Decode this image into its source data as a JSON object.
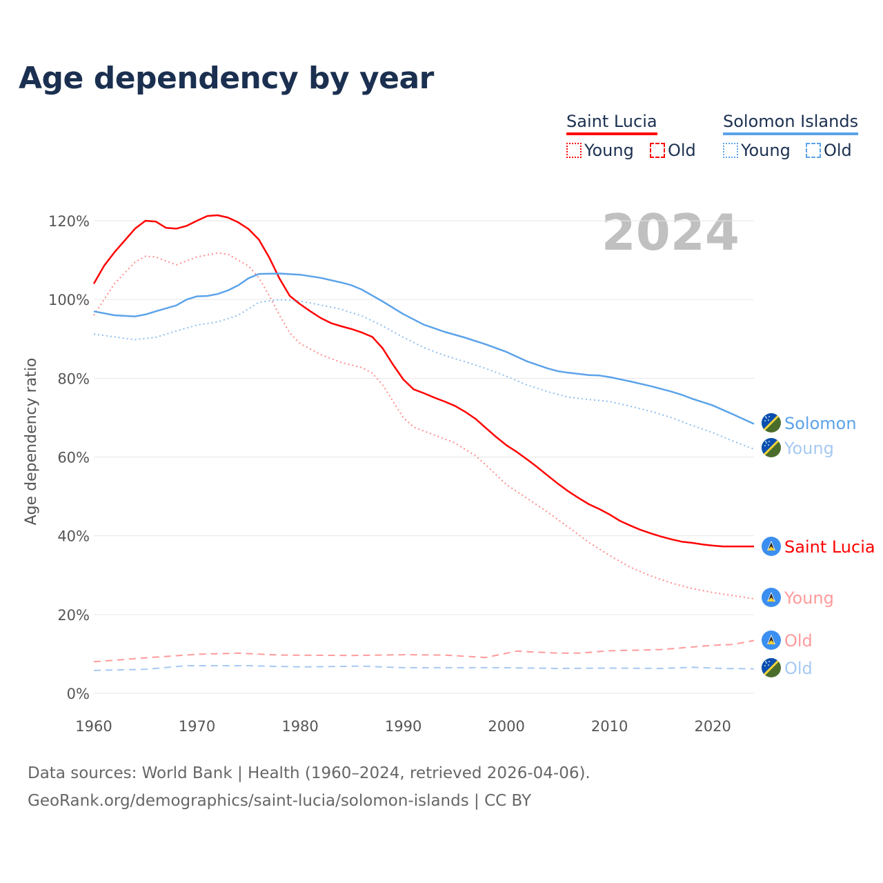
{
  "title": "Age dependency by year",
  "legend": {
    "groups": [
      {
        "country": "Saint Lucia",
        "color": "#ff0000",
        "items": [
          "Young",
          "Old"
        ]
      },
      {
        "country": "Solomon Islands",
        "color": "#5ba3ea",
        "items": [
          "Young",
          "Old"
        ]
      }
    ]
  },
  "year_watermark": "2024",
  "footer": {
    "line1": "Data sources: World Bank | Health (1960–2024, retrieved 2026-04-06).",
    "line2": "GeoRank.org/demographics/saint-lucia/solomon-islands | CC BY"
  },
  "chart_data": {
    "type": "line",
    "title": "Age dependency by year",
    "xlabel": "",
    "ylabel": "Age dependency ratio",
    "xlim": [
      1960,
      2024
    ],
    "ylim": [
      0,
      120
    ],
    "x_ticks": [
      "1960",
      "1970",
      "1980",
      "1990",
      "2000",
      "2010",
      "2020"
    ],
    "y_ticks": [
      "0%",
      "20%",
      "40%",
      "60%",
      "80%",
      "100%",
      "120%"
    ],
    "grid": true,
    "series": [
      {
        "name": "Saint Lucia",
        "end_label": "Saint Lucia",
        "flag": "saint-lucia",
        "style": "solid",
        "color": "#ff0000",
        "label_color": "#ff0000",
        "x": [
          1960,
          1961,
          1962,
          1963,
          1964,
          1965,
          1966,
          1967,
          1968,
          1969,
          1970,
          1971,
          1972,
          1973,
          1974,
          1975,
          1976,
          1977,
          1978,
          1979,
          1980,
          1981,
          1982,
          1983,
          1984,
          1985,
          1986,
          1987,
          1988,
          1989,
          1990,
          1991,
          1992,
          1993,
          1994,
          1995,
          1996,
          1997,
          1998,
          1999,
          2000,
          2001,
          2002,
          2003,
          2004,
          2005,
          2006,
          2007,
          2008,
          2009,
          2010,
          2011,
          2012,
          2013,
          2014,
          2015,
          2016,
          2017,
          2018,
          2019,
          2020,
          2021,
          2022,
          2023,
          2024
        ],
        "y": [
          104,
          108.6,
          112,
          115,
          118,
          120,
          119.8,
          118.2,
          118,
          118.7,
          120,
          121.2,
          121.4,
          120.8,
          119.6,
          117.9,
          115.2,
          110.7,
          105.3,
          100.9,
          98.8,
          97,
          95.3,
          94,
          93.2,
          92.5,
          91.6,
          90.5,
          87.6,
          83.5,
          79.7,
          77.2,
          76.2,
          75.1,
          74.1,
          73,
          71.5,
          69.7,
          67.4,
          65.1,
          63,
          61.3,
          59.4,
          57.4,
          55.3,
          53.2,
          51.3,
          49.6,
          48,
          46.8,
          45.4,
          43.8,
          42.6,
          41.5,
          40.6,
          39.8,
          39.1,
          38.5,
          38.2,
          37.8,
          37.5,
          37.3,
          37.3,
          37.3,
          37.3
        ]
      },
      {
        "name": "Saint Lucia Young",
        "end_label": "Young",
        "flag": "saint-lucia",
        "style": "dotted",
        "color": "#ff8a8a",
        "label_color": "#ff9a9a",
        "x": [
          1960,
          1962,
          1964,
          1965,
          1966,
          1968,
          1970,
          1972,
          1973,
          1975,
          1976,
          1977,
          1978,
          1979,
          1980,
          1982,
          1984,
          1986,
          1987,
          1988,
          1990,
          1991,
          1993,
          1995,
          1997,
          1998,
          2000,
          2002,
          2004,
          2006,
          2008,
          2010,
          2012,
          2014,
          2016,
          2018,
          2020,
          2022,
          2024
        ],
        "y": [
          96,
          104,
          109.5,
          111,
          110.8,
          108.8,
          110.8,
          111.8,
          111.5,
          108.5,
          105.5,
          101,
          96,
          91.5,
          88.8,
          86,
          84,
          82.7,
          81.3,
          78.3,
          70,
          67.6,
          65.6,
          63.6,
          60.3,
          58,
          53,
          49.5,
          46,
          42.2,
          38.3,
          35,
          32,
          29.8,
          28,
          26.6,
          25.6,
          24.8,
          24
        ]
      },
      {
        "name": "Saint Lucia Old",
        "end_label": "Old",
        "flag": "saint-lucia",
        "style": "dashed",
        "color": "#ff9a9a",
        "label_color": "#ff9a9a",
        "x": [
          1960,
          1965,
          1970,
          1974,
          1978,
          1985,
          1990,
          1994,
          1998,
          2001,
          2005,
          2007,
          2010,
          2015,
          2020,
          2022,
          2024
        ],
        "y": [
          8,
          9,
          9.9,
          10.2,
          9.7,
          9.6,
          9.8,
          9.7,
          9.1,
          10.7,
          10.2,
          10.2,
          10.8,
          11.1,
          12.2,
          12.4,
          13.4
        ]
      },
      {
        "name": "Solomon Islands",
        "end_label": "Solomon",
        "flag": "solomon-islands",
        "style": "solid",
        "color": "#5ba3ea",
        "label_color": "#5ba3ea",
        "x": [
          1960,
          1962,
          1964,
          1965,
          1966,
          1968,
          1969,
          1970,
          1971,
          1972,
          1973,
          1974,
          1975,
          1976,
          1978,
          1980,
          1982,
          1984,
          1985,
          1986,
          1988,
          1990,
          1992,
          1994,
          1996,
          1998,
          2000,
          2002,
          2004,
          2005,
          2006,
          2008,
          2009,
          2010,
          2012,
          2014,
          2016,
          2017,
          2018,
          2020,
          2022,
          2024
        ],
        "y": [
          97,
          96,
          95.7,
          96.2,
          97,
          98.5,
          100,
          100.8,
          100.9,
          101.4,
          102.3,
          103.6,
          105.4,
          106.5,
          106.6,
          106.3,
          105.5,
          104.3,
          103.6,
          102.5,
          99.5,
          96.3,
          93.6,
          91.8,
          90.3,
          88.6,
          86.7,
          84.3,
          82.5,
          81.8,
          81.4,
          80.8,
          80.7,
          80.3,
          79.2,
          78,
          76.6,
          75.8,
          74.8,
          73.1,
          70.8,
          68.4
        ]
      },
      {
        "name": "Solomon Islands Young",
        "end_label": "Young",
        "flag": "solomon-islands",
        "style": "dotted",
        "color": "#8cbcee",
        "label_color": "#a6c9f1",
        "x": [
          1960,
          1962,
          1964,
          1966,
          1968,
          1970,
          1972,
          1974,
          1976,
          1978,
          1980,
          1982,
          1984,
          1986,
          1988,
          1990,
          1992,
          1994,
          1996,
          1998,
          2000,
          2002,
          2004,
          2006,
          2008,
          2010,
          2012,
          2014,
          2016,
          2018,
          2020,
          2022,
          2024
        ],
        "y": [
          91.2,
          90.5,
          89.8,
          90.4,
          92,
          93.5,
          94.3,
          96,
          99.3,
          100,
          99.6,
          98.6,
          97.5,
          95.8,
          93.3,
          90.4,
          87.8,
          85.8,
          84.2,
          82.5,
          80.5,
          78.3,
          76.6,
          75.2,
          74.6,
          74.1,
          72.9,
          71.6,
          70,
          68,
          66.2,
          64,
          62
        ]
      },
      {
        "name": "Solomon Islands Old",
        "end_label": "Old",
        "flag": "solomon-islands",
        "style": "dashed",
        "color": "#a6c9f1",
        "label_color": "#a6c9f1",
        "x": [
          1960,
          1965,
          1969,
          1975,
          1980,
          1986,
          1990,
          1995,
          2000,
          2005,
          2010,
          2015,
          2018,
          2021,
          2024
        ],
        "y": [
          5.8,
          6.1,
          7,
          7,
          6.7,
          6.9,
          6.5,
          6.5,
          6.5,
          6.3,
          6.4,
          6.3,
          6.6,
          6.3,
          6.2
        ]
      }
    ]
  }
}
